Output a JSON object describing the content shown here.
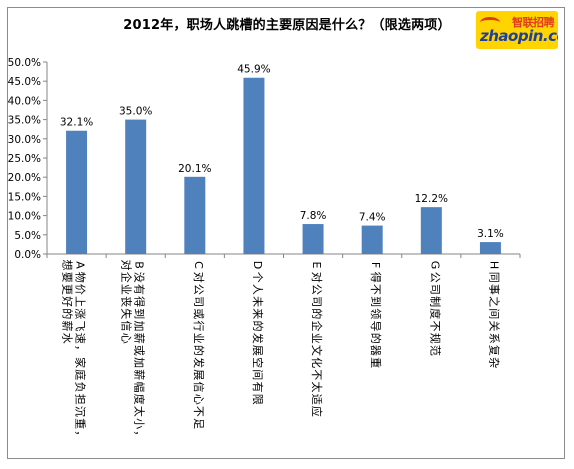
{
  "chart_data": {
    "type": "bar",
    "title": "2012年，职场人跳槽的主要原因是什么？（限选两项）",
    "categories": [
      "A物价上涨飞速，家庭负担沉重，想要更好的薪水",
      "B没有得到加薪或加薪幅度太小，对企业丧失信心",
      "C对公司或行业的发展信心不足",
      "D个人未来的发展空间有限",
      "E对公司的企业文化不太适应",
      "F得不到领导的器重",
      "G公司制度不规范",
      "H同事之间关系复杂"
    ],
    "values": [
      32.1,
      35.0,
      20.1,
      45.9,
      7.8,
      7.4,
      12.2,
      3.1
    ],
    "data_labels": [
      "32.1%",
      "35.0%",
      "20.1%",
      "45.9%",
      "7.8%",
      "7.4%",
      "12.2%",
      "3.1%"
    ],
    "ylim": [
      0,
      50
    ],
    "yticks": [
      "0.0%",
      "5.0%",
      "10.0%",
      "15.0%",
      "20.0%",
      "25.0%",
      "30.0%",
      "35.0%",
      "40.0%",
      "45.0%",
      "50.0%"
    ],
    "grid": false,
    "legend": "none",
    "bar_color": "#4f81bd",
    "xlabel": "",
    "ylabel": ""
  },
  "logo": {
    "cn": "智联招聘",
    "en": "zhaopin.com"
  }
}
